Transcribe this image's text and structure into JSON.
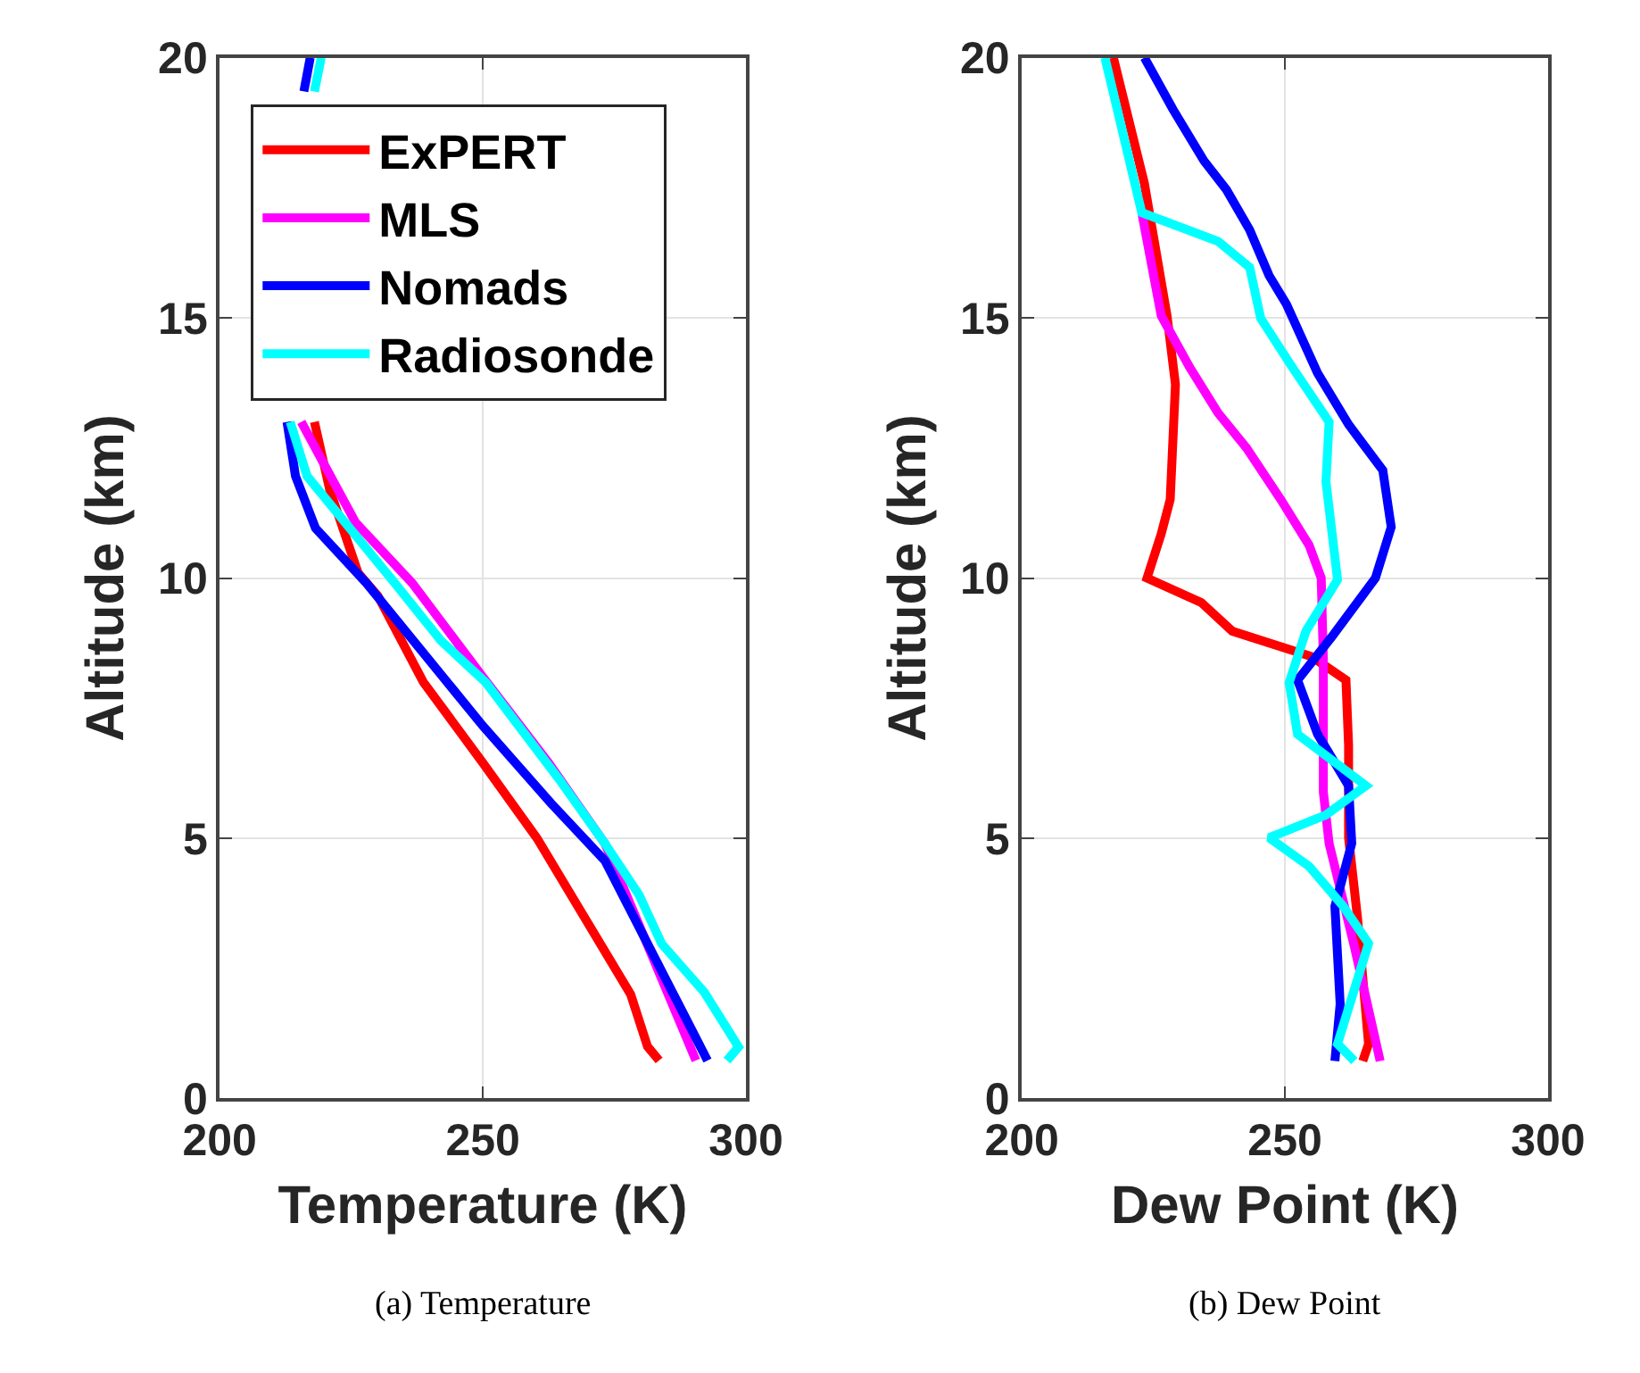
{
  "chart_data": [
    {
      "type": "line",
      "xlabel": "Temperature (K)",
      "ylabel": "Altitude (km)",
      "annotations": [
        "(a) Temperature"
      ],
      "xlim": [
        200,
        300
      ],
      "xticks": [
        200,
        250,
        300
      ],
      "ylim": [
        0,
        20
      ],
      "yticks": [
        0,
        5,
        10,
        15,
        20
      ],
      "grid": true,
      "legend": "top left",
      "series": [
        {
          "name": "ExPERT",
          "color": "#ff0000",
          "x": [
            283.5,
            281.3,
            278.1,
            260.3,
            250.0,
            238.7,
            230.1,
            226.3,
            220.9,
            218.0
          ],
          "values": [
            0.73,
            1.0,
            2.0,
            5.0,
            6.45,
            8.0,
            9.65,
            10.1,
            11.7,
            13.0
          ]
        },
        {
          "name": "MLS",
          "color": "#ff00ff",
          "x": [
            290.5,
            273.2,
            262.5,
            250.0,
            236.6,
            225.8,
            215.5
          ],
          "values": [
            0.73,
            4.9,
            6.45,
            8.1,
            9.9,
            11.07,
            13.0
          ]
        },
        {
          "name": "Nomads",
          "color": "#0000ff",
          "x": [
            292.7,
            273.2,
            262.9,
            250.0,
            227.9,
            218.2,
            214.4,
            212.8,
            null,
            216.0,
            217.2
          ],
          "values": [
            0.73,
            4.57,
            5.68,
            7.16,
            9.9,
            10.96,
            11.96,
            13.0,
            null,
            19.35,
            20.0
          ]
        },
        {
          "name": "Radiosonde",
          "color": "#00ffff",
          "x": [
            296.4,
            298.6,
            292.1,
            284.0,
            279.7,
            273.2,
            264.6,
            250.6,
            242.0,
            233.3,
            216.6,
            213.4,
            null,
            218.0,
            219.3
          ],
          "values": [
            0.73,
            0.99,
            2.04,
            2.97,
            3.91,
            4.9,
            6.12,
            7.99,
            8.8,
            9.9,
            11.96,
            13.0,
            null,
            19.35,
            20.0
          ]
        }
      ]
    },
    {
      "type": "line",
      "xlabel": "Dew Point (K)",
      "ylabel": "Altitude (km)",
      "annotations": [
        "(b) Dew Point"
      ],
      "xlim": [
        200,
        300
      ],
      "xticks": [
        200,
        250,
        300
      ],
      "ylim": [
        0,
        20
      ],
      "yticks": [
        0,
        5,
        10,
        15,
        20
      ],
      "grid": true,
      "series": [
        {
          "color": "#ff0000",
          "x": [
            217.4,
            223.3,
            227.6,
            229.2,
            228.2,
            226.5,
            223.8,
            234.1,
            240.0,
            255.1,
            261.6,
            262.1,
            262.1,
            263.8,
            265.9,
            264.8
          ],
          "values": [
            20.0,
            17.58,
            15.04,
            13.72,
            11.51,
            10.85,
            10.0,
            9.53,
            8.98,
            8.49,
            8.04,
            6.78,
            5.01,
            3.47,
            1.05,
            0.72
          ]
        },
        {
          "color": "#ff00ff",
          "x": [
            222.8,
            226.5,
            231.9,
            237.3,
            242.7,
            249.2,
            254.6,
            256.9,
            257.3,
            257.3,
            258.4,
            263.2,
            268.1
          ],
          "values": [
            17.02,
            15.04,
            14.05,
            13.17,
            12.5,
            11.51,
            10.63,
            10.0,
            8.43,
            5.89,
            4.9,
            2.92,
            0.72
          ]
        },
        {
          "color": "#0000ff",
          "x": [
            223.3,
            228.7,
            234.6,
            238.9,
            243.3,
            247.0,
            250.3,
            256.2,
            262.1,
            268.6,
            270.2,
            267.2,
            258.9,
            252.4,
            256.2,
            262.1,
            262.7,
            259.5,
            260.5,
            259.5
          ],
          "values": [
            20.0,
            19.01,
            18.02,
            17.46,
            16.69,
            15.81,
            15.26,
            13.94,
            12.95,
            12.07,
            10.98,
            10.0,
            8.87,
            8.04,
            7.0,
            6.01,
            4.9,
            3.69,
            1.82,
            0.72
          ]
        },
        {
          "color": "#00ffff",
          "x": [
            215.8,
            222.8,
            237.3,
            243.3,
            245.4,
            251.4,
            258.4,
            257.8,
            260.0,
            254.0,
            250.8,
            252.4,
            265.4,
            257.8,
            247.0,
            254.6,
            261.1,
            265.9,
            260.0,
            263.2
          ],
          "values": [
            20.0,
            17.02,
            16.47,
            15.97,
            14.99,
            14.05,
            13.0,
            11.85,
            9.97,
            8.98,
            7.99,
            7.0,
            6.01,
            5.45,
            5.01,
            4.46,
            3.69,
            2.98,
            1.05,
            0.72
          ]
        }
      ]
    }
  ]
}
